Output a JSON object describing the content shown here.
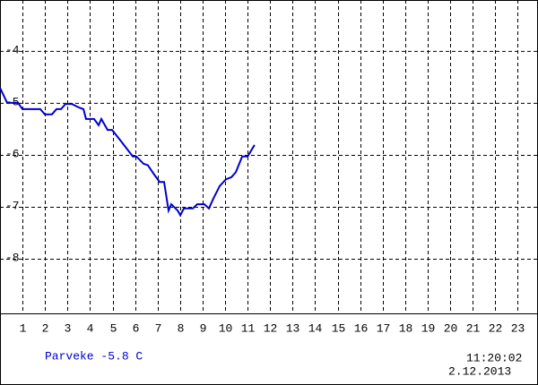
{
  "chart_data": {
    "type": "line",
    "x": [
      0,
      0.32,
      0.8,
      1.0,
      1.79,
      1.99,
      2.31,
      2.51,
      2.71,
      2.91,
      3.19,
      3.51,
      3.71,
      3.82,
      4.18,
      4.38,
      4.5,
      4.78,
      4.98,
      5.38,
      5.9,
      6.06,
      6.37,
      6.57,
      6.85,
      7.09,
      7.29,
      7.49,
      7.61,
      7.89,
      8.01,
      8.17,
      8.57,
      8.76,
      9.08,
      9.28,
      9.48,
      9.76,
      10.04,
      10.28,
      10.48,
      10.76,
      11.0,
      11.31
    ],
    "series": [
      {
        "name": "Parveke -5.8 C",
        "color": "#0000cc",
        "values": [
          -4.71,
          -5.0,
          -5.0,
          -5.12,
          -5.12,
          -5.22,
          -5.22,
          -5.12,
          -5.12,
          -5.02,
          -5.02,
          -5.09,
          -5.12,
          -5.31,
          -5.31,
          -5.43,
          -5.31,
          -5.52,
          -5.52,
          -5.74,
          -6.03,
          -6.03,
          -6.17,
          -6.2,
          -6.38,
          -6.52,
          -6.52,
          -7.07,
          -6.95,
          -7.07,
          -7.16,
          -7.03,
          -7.03,
          -6.95,
          -6.95,
          -7.03,
          -6.84,
          -6.6,
          -6.47,
          -6.43,
          -6.33,
          -6.03,
          -6.03,
          -5.81
        ]
      }
    ],
    "xlim": [
      0,
      23.9
    ],
    "xticks": [
      1,
      2,
      3,
      4,
      5,
      6,
      7,
      8,
      9,
      10,
      11,
      12,
      13,
      14,
      15,
      16,
      17,
      18,
      19,
      20,
      21,
      22,
      23
    ],
    "ylim": [
      -9.05,
      -3.02
    ],
    "yticks": [
      -8,
      -7,
      -6,
      -5,
      -4
    ],
    "grid": true,
    "time": "11:20:02",
    "date": "2.12.2013"
  }
}
